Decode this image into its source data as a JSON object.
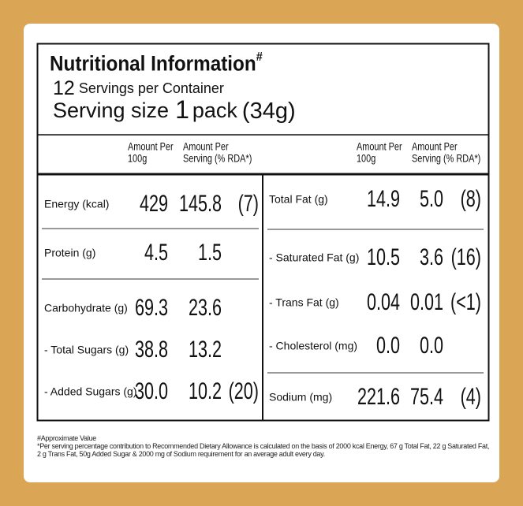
{
  "header": {
    "title": "Nutritional Information",
    "title_mark": "#",
    "servings_count": "12",
    "servings_text": "Servings per Container",
    "serving_size_label": "Serving size",
    "serving_size_amount": "1",
    "serving_size_unit": "pack",
    "serving_size_weight": "(34g)"
  },
  "column_headers": {
    "left": [
      [
        "Amount Per",
        "100g"
      ],
      [
        "Amount Per",
        "Serving (% RDA*)"
      ]
    ],
    "right": [
      [
        "Amount Per",
        "100g"
      ],
      [
        "Amount Per",
        "Serving (% RDA*)"
      ]
    ]
  },
  "table": {
    "left": [
      [
        "Energy (kcal)",
        "429",
        "145.8",
        "(7)"
      ],
      [
        "Protein (g)",
        "4.5",
        "1.5"
      ],
      [
        "Carbohydrate (g)",
        "69.3",
        "23.6"
      ],
      [
        "- Total Sugars (g)",
        "38.8",
        "13.2"
      ],
      [
        "- Added Sugars (g)",
        "30.0",
        "10.2",
        "(20)"
      ]
    ],
    "right": [
      [
        "Total Fat (g)",
        "14.9",
        "5.0",
        "(8)"
      ],
      [
        "- Saturated Fat (g)",
        "10.5",
        "3.6",
        "(16)"
      ],
      [
        "- Trans Fat (g)",
        "0.04",
        "0.01",
        "(<1)"
      ],
      [
        "- Cholesterol (mg)",
        "0.0",
        "0.0"
      ],
      [
        "Sodium (mg)",
        "221.6",
        "75.4",
        "(4)"
      ]
    ]
  },
  "footnotes": [
    "#Approximate Value",
    "*Per serving percentage contribution to Recommended Dietary Allowance is calculated on the basis of 2000 kcal Energy, 67 g Total Fat, 22 g Saturated Fat, 2 g Trans Fat, 50g Added Sugar & 2000 mg of Sodium requirement for an average adult every day."
  ]
}
